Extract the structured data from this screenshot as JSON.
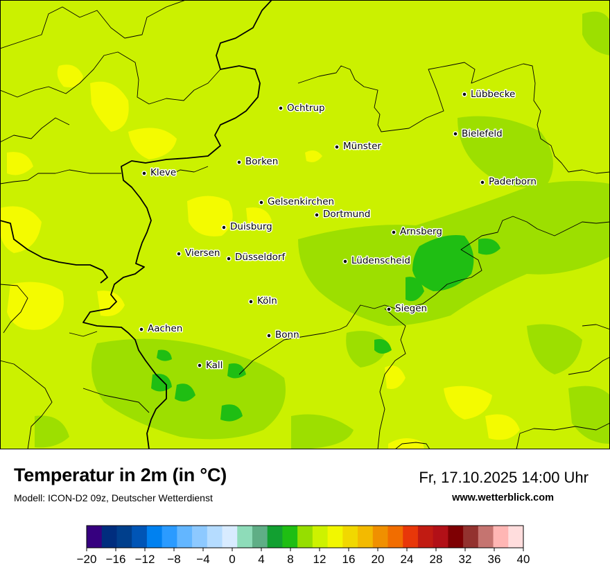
{
  "map": {
    "cities": [
      {
        "name": "Lübbecke"
      },
      {
        "name": "Ochtrup"
      },
      {
        "name": "Bielefeld"
      },
      {
        "name": "Münster"
      },
      {
        "name": "Kleve"
      },
      {
        "name": "Borken"
      },
      {
        "name": "Paderborn"
      },
      {
        "name": "Gelsenkirchen"
      },
      {
        "name": "Dortmund"
      },
      {
        "name": "Duisburg"
      },
      {
        "name": "Arnsberg"
      },
      {
        "name": "Viersen"
      },
      {
        "name": "Düsseldorf"
      },
      {
        "name": "Lüdenscheid"
      },
      {
        "name": "Köln"
      },
      {
        "name": "Siegen"
      },
      {
        "name": "Aachen"
      },
      {
        "name": "Bonn"
      },
      {
        "name": "Kall"
      }
    ]
  },
  "footer": {
    "title": "Temperatur in 2m (in °C)",
    "subtitle": "Modell: ICON-D2 09z, Deutscher Wetterdienst",
    "datetime": "Fr, 17.10.2025 14:00 Uhr",
    "website": "www.wetterblick.com"
  },
  "legend": {
    "ticks": [
      "−20",
      "−16",
      "−12",
      "−8",
      "−4",
      "0",
      "4",
      "8",
      "12",
      "16",
      "20",
      "24",
      "28",
      "32",
      "36",
      "40"
    ],
    "colors": [
      "#36007f",
      "#002d7e",
      "#003f8c",
      "#0055b6",
      "#0081f0",
      "#2b9bff",
      "#63b6ff",
      "#8dc9ff",
      "#b5dcff",
      "#d8ebff",
      "#8edcb9",
      "#5fae86",
      "#12a031",
      "#1fbe13",
      "#96de00",
      "#cdf200",
      "#f2f700",
      "#f1d800",
      "#f3ba00",
      "#f09000",
      "#f16d00",
      "#e83709",
      "#c11b12",
      "#b21017",
      "#7e0003",
      "#93322f",
      "#c57470",
      "#ffb6b4",
      "#ffdddd"
    ]
  },
  "colors": {
    "base_field": "#cbf100",
    "warm_field": "#f4fb00",
    "cool_field": "#9ddf00",
    "cold_field": "#1fbe13"
  }
}
